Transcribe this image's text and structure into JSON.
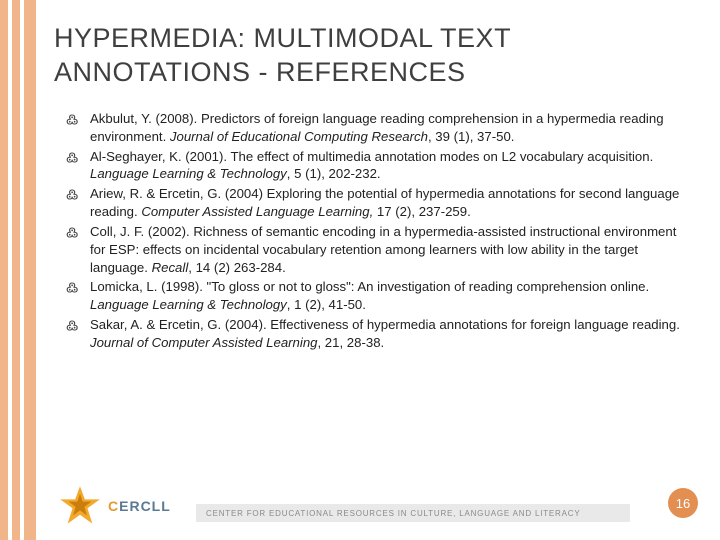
{
  "colors": {
    "stripe": "#f1b58a",
    "title": "#3f3f3f",
    "text": "#222222",
    "pagenum_bg": "#e38f52",
    "tagline_bg": "#e9e9e9",
    "tagline_text": "#8a8a8a",
    "logo_blue": "#5a7a93",
    "logo_orange": "#e69a2f",
    "star_fill": "#f2a92e",
    "star_dark": "#c97e0e"
  },
  "title": "HYPERMEDIA: MULTIMODAL TEXT ANNOTATIONS - REFERENCES",
  "references": [
    {
      "pre": "Akbulut, Y. (2008). Predictors of foreign language reading comprehension in a hypermedia reading environment. ",
      "ital": "Journal of Educational Computing Research",
      "post": ", 39 (1), 37-50."
    },
    {
      "pre": "Al-Seghayer, K. (2001). The effect of multimedia annotation modes on L2 vocabulary acquisition. ",
      "ital": "Language Learning & Technology",
      "post": ", 5 (1), 202-232."
    },
    {
      "pre": "Ariew, R. & Ercetin, G. (2004) Exploring the potential of hypermedia annotations for second language reading. ",
      "ital": "Computer Assisted Language Learning,",
      "post": " 17 (2), 237-259."
    },
    {
      "pre": "Coll, J. F. (2002). Richness of semantic encoding in a hypermedia-assisted instructional environment for ESP: effects on incidental vocabulary retention among learners with low ability in the target language. ",
      "ital": "Recall",
      "post": ", 14 (2) 263-284."
    },
    {
      "pre": "Lomicka, L. (1998). \"To gloss or not to gloss\": An investigation of reading comprehension online. ",
      "ital": "Language Learning & Technology",
      "post": ", 1 (2), 41-50."
    },
    {
      "pre": "Sakar, A. & Ercetin, G. (2004). Effectiveness of hypermedia annotations for foreign language reading. ",
      "ital": "Journal of Computer Assisted Learning",
      "post": ", 21, 28-38."
    }
  ],
  "logo": {
    "text_c": "C",
    "text_rest": "ERCLL"
  },
  "tagline": "CENTER FOR EDUCATIONAL RESOURCES IN CULTURE, LANGUAGE AND LITERACY",
  "page_number": "16"
}
